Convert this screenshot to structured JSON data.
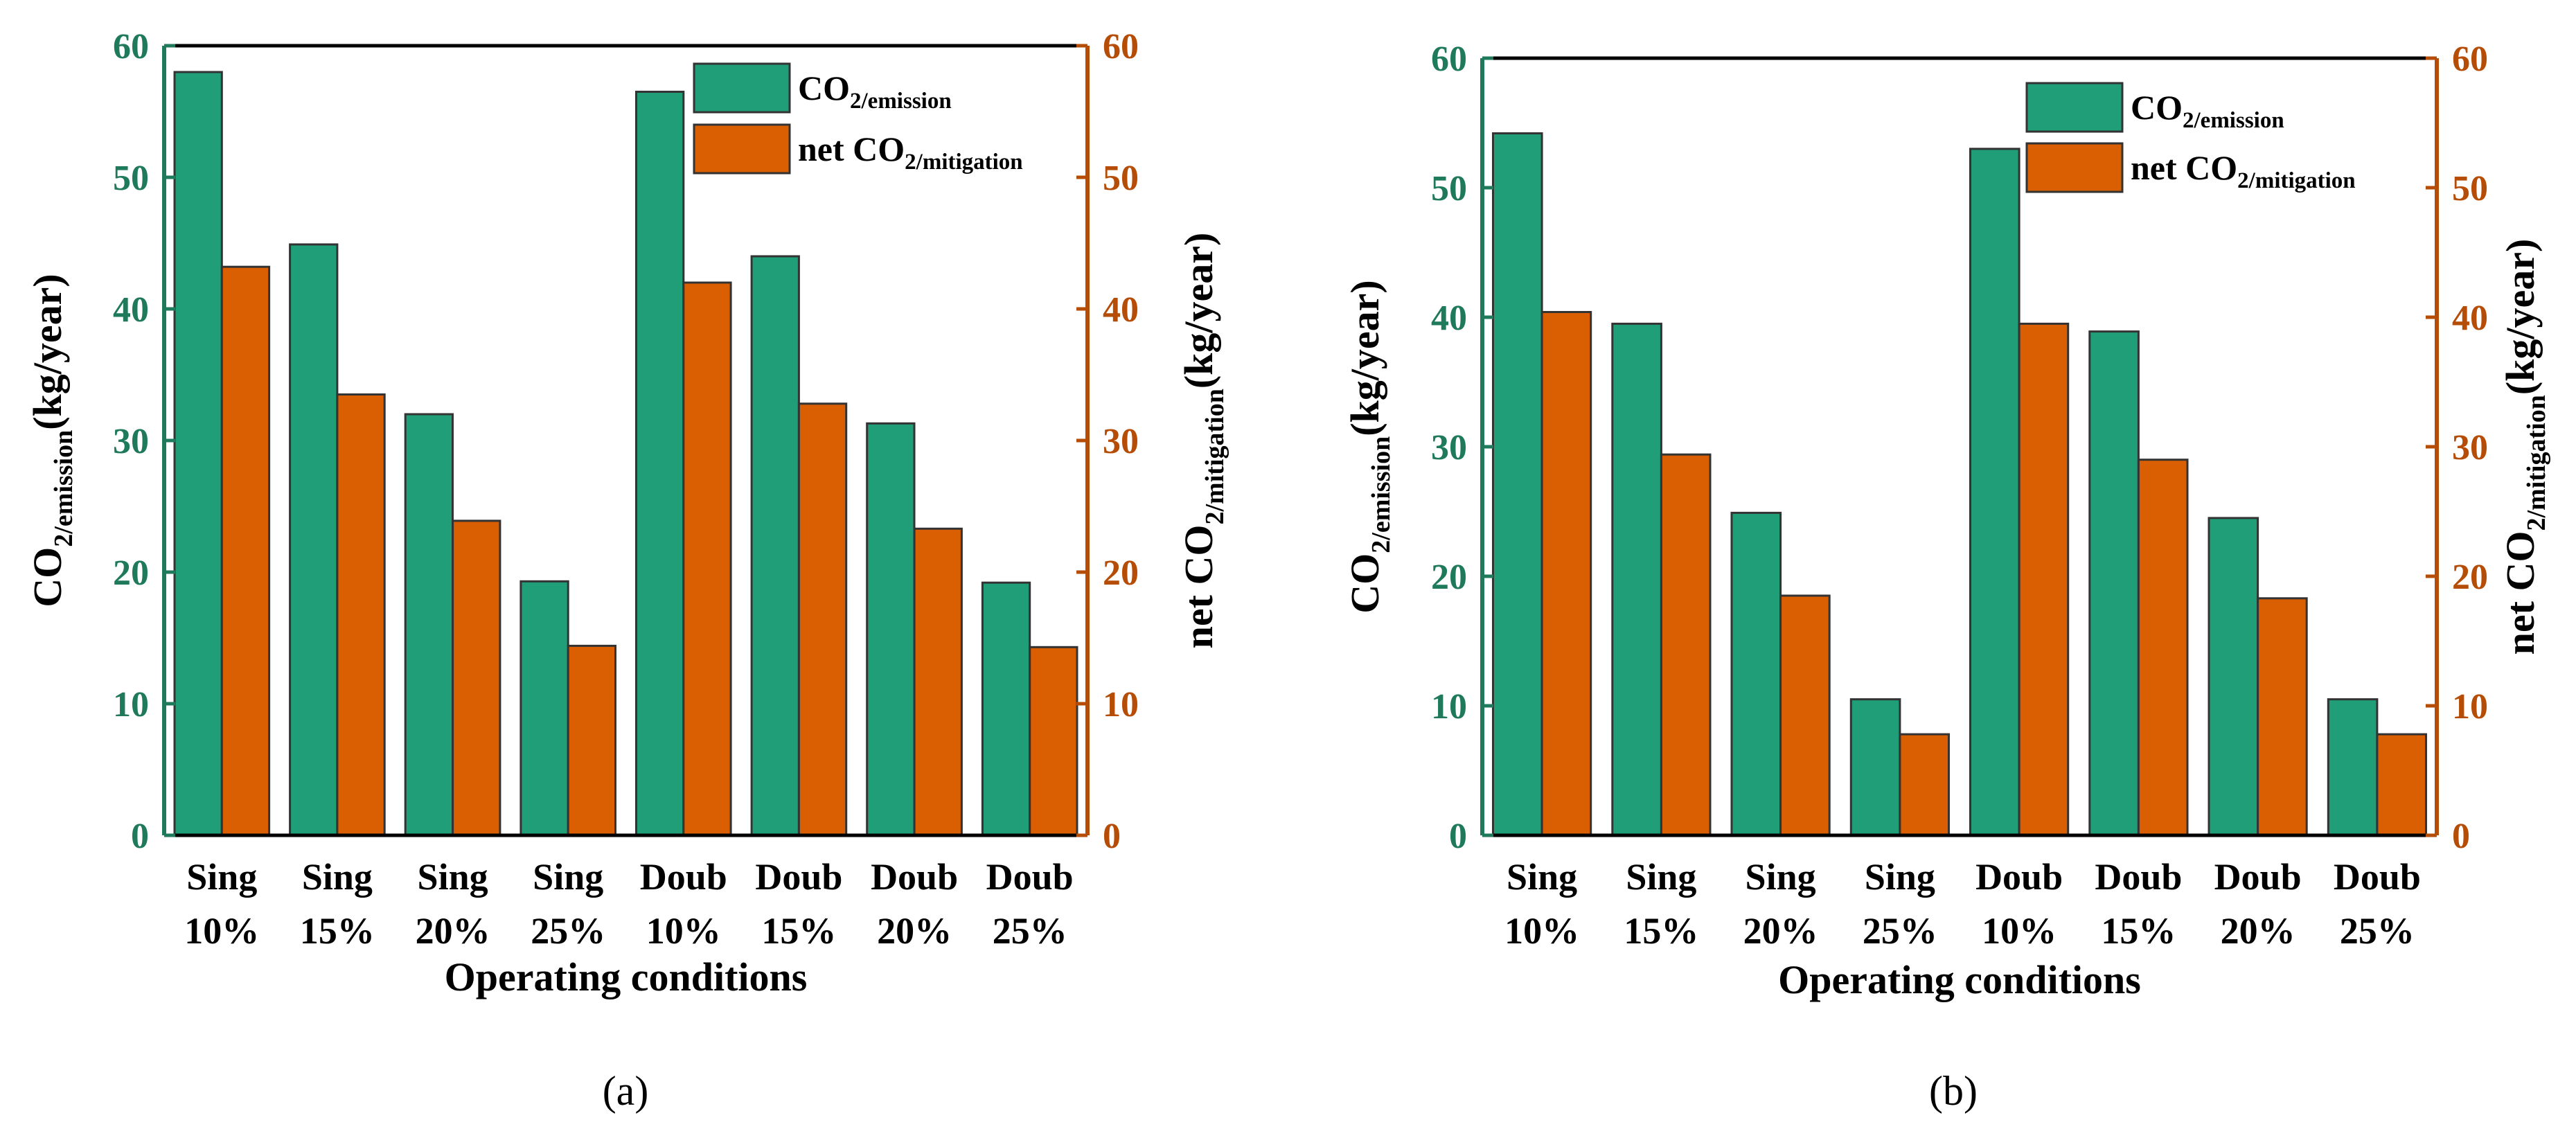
{
  "colors": {
    "emission": "#1f9e78",
    "mitigation": "#d95f02",
    "left_axis": "#1f7a5c",
    "right_axis": "#b54d06"
  },
  "legend": {
    "emission": {
      "main": "CO",
      "sub_num": "2",
      "sub": "/emission"
    },
    "mitigation": {
      "main": "net CO",
      "sub_num": "2",
      "sub": "/mitigation"
    }
  },
  "panels": [
    {
      "label": "(a)",
      "left_axis_label": {
        "main": "CO",
        "sub": "2/emission",
        "unit": "(kg/year)"
      },
      "right_axis_label": {
        "main": "net CO",
        "sub": "2/mitigation",
        "unit": "(kg/year)"
      },
      "xlabel": "Operating conditions",
      "ylim": [
        0,
        60
      ],
      "ticks": [
        0,
        10,
        20,
        30,
        40,
        50,
        60
      ]
    },
    {
      "label": "(b)",
      "left_axis_label": {
        "main": "CO",
        "sub": "2/emission",
        "unit": "(kg/year)"
      },
      "right_axis_label": {
        "main": "net CO",
        "sub": "2/mitigation",
        "unit": "(kg/year)"
      },
      "xlabel": "Operating conditions",
      "ylim": [
        0,
        60
      ],
      "ticks": [
        0,
        10,
        20,
        30,
        40,
        50,
        60
      ]
    }
  ],
  "chart_data": [
    {
      "type": "bar",
      "title": "(a)",
      "categories": [
        [
          "Sing",
          "10%"
        ],
        [
          "Sing",
          "15%"
        ],
        [
          "Sing",
          "20%"
        ],
        [
          "Sing",
          "25%"
        ],
        [
          "Doub",
          "10%"
        ],
        [
          "Doub",
          "15%"
        ],
        [
          "Doub",
          "20%"
        ],
        [
          "Doub",
          "25%"
        ]
      ],
      "series": [
        {
          "name": "CO2/emission",
          "axis": "left",
          "values": [
            58.0,
            44.9,
            32.0,
            19.3,
            56.5,
            44.0,
            31.3,
            19.2
          ]
        },
        {
          "name": "net CO2/mitigation",
          "axis": "right",
          "values": [
            43.2,
            33.5,
            23.9,
            14.4,
            42.0,
            32.8,
            23.3,
            14.3
          ]
        }
      ],
      "xlabel": "Operating conditions",
      "ylabel": "CO2/emission(kg/year)",
      "ylabel_right": "net CO2/mitigation(kg/year)",
      "ylim": [
        0,
        60
      ],
      "legend": "top-right"
    },
    {
      "type": "bar",
      "title": "(b)",
      "categories": [
        [
          "Sing",
          "10%"
        ],
        [
          "Sing",
          "15%"
        ],
        [
          "Sing",
          "20%"
        ],
        [
          "Sing",
          "25%"
        ],
        [
          "Doub",
          "10%"
        ],
        [
          "Doub",
          "15%"
        ],
        [
          "Doub",
          "20%"
        ],
        [
          "Doub",
          "25%"
        ]
      ],
      "series": [
        {
          "name": "CO2/emission",
          "axis": "left",
          "values": [
            54.2,
            39.5,
            24.9,
            10.5,
            53.0,
            38.9,
            24.5,
            10.5
          ]
        },
        {
          "name": "net CO2/mitigation",
          "axis": "right",
          "values": [
            40.4,
            29.4,
            18.5,
            7.8,
            39.5,
            29.0,
            18.3,
            7.8
          ]
        }
      ],
      "xlabel": "Operating conditions",
      "ylabel": "CO2/emission(kg/year)",
      "ylabel_right": "net CO2/mitigation(kg/year)",
      "ylim": [
        0,
        60
      ],
      "legend": "top-right"
    }
  ]
}
